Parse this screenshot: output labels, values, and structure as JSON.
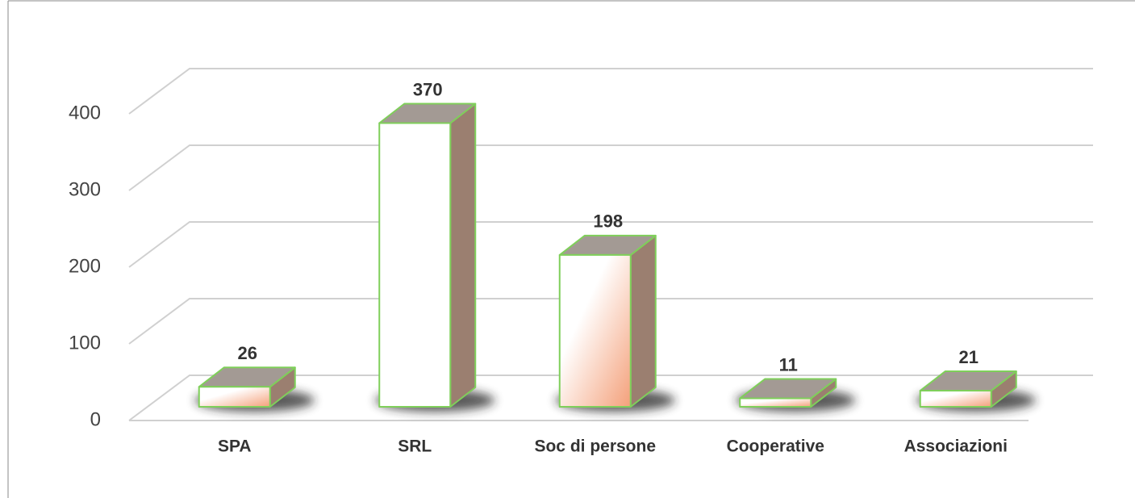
{
  "chart_data": {
    "type": "bar3d",
    "categories": [
      "SPA",
      "SRL",
      "Soc di persone",
      "Cooperative",
      "Associazioni"
    ],
    "values": [
      26,
      370,
      198,
      11,
      21
    ],
    "colors": [
      "#f4a07a",
      "#ffffff",
      "#f4a07a",
      "#f4a07a",
      "#f4a07a"
    ],
    "edge_color": "#7fcf5a",
    "ylim": [
      0,
      400
    ],
    "yticks": [
      0,
      100,
      200,
      300,
      400
    ],
    "grid": true
  }
}
